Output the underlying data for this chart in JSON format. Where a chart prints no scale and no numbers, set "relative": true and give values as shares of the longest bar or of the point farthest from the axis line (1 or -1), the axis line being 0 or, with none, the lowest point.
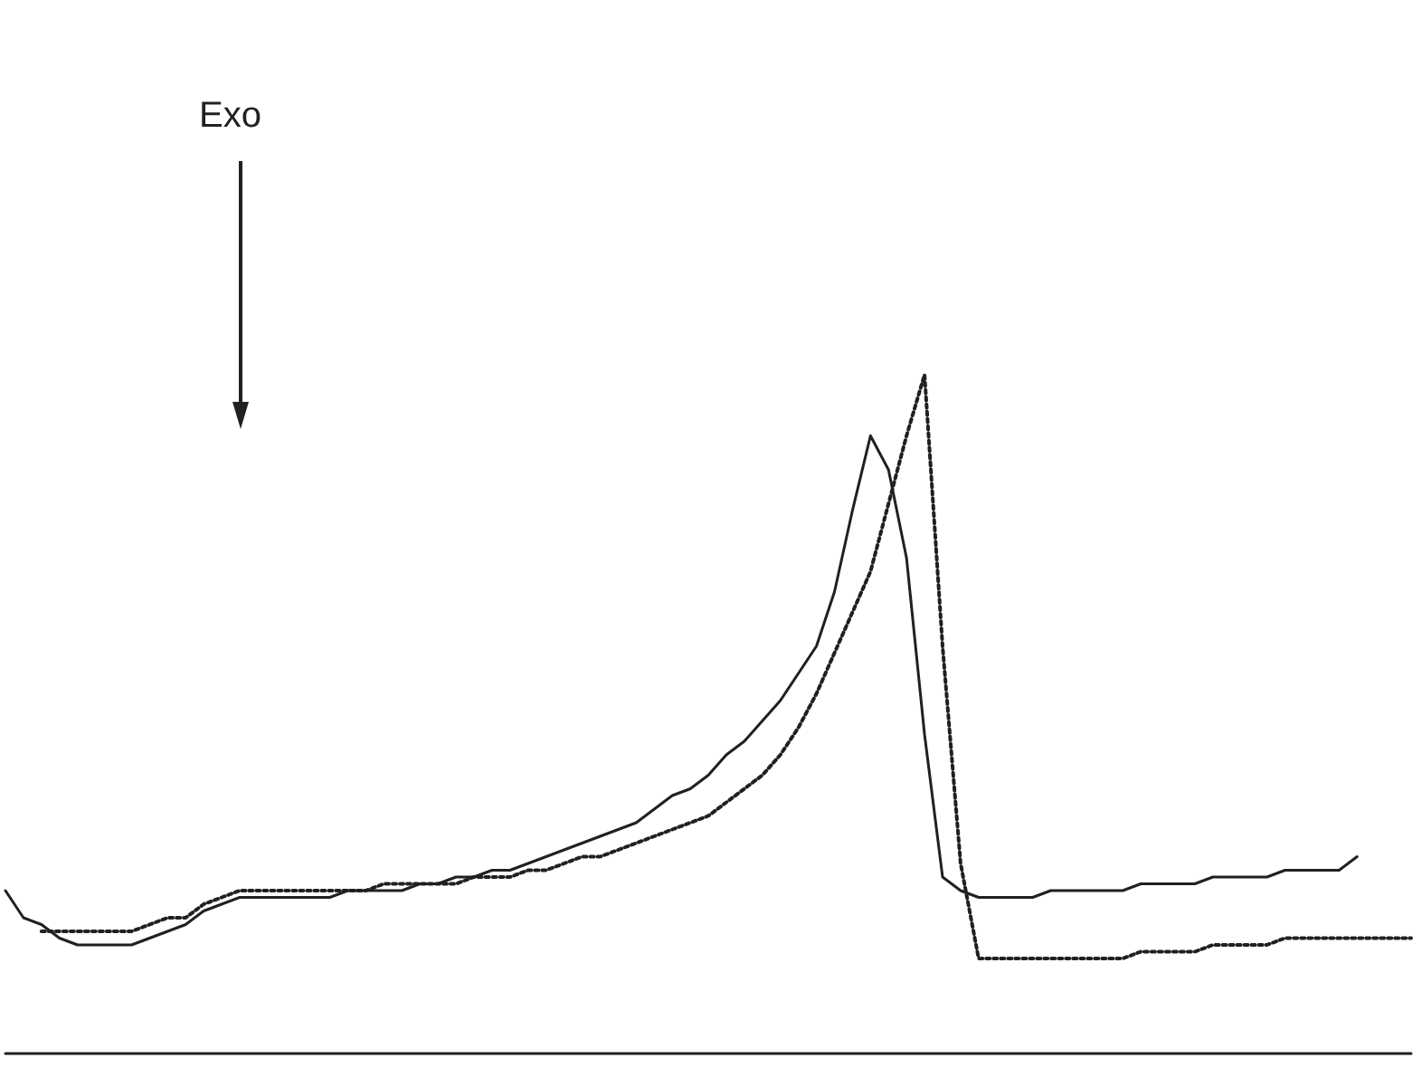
{
  "chart_data": {
    "type": "line",
    "relative": true,
    "grid": false,
    "marker": "none",
    "annotations": [
      "Exo"
    ],
    "categories": [
      null,
      null,
      null,
      null,
      null,
      null,
      null,
      null,
      null,
      null,
      null,
      null,
      null,
      null,
      null,
      null,
      null,
      null,
      null,
      null,
      null,
      null,
      null,
      null,
      null,
      null,
      null,
      null,
      null,
      null,
      null,
      null,
      null,
      null,
      null,
      null,
      null,
      null,
      null,
      null,
      null,
      null,
      null,
      null,
      null,
      null,
      null,
      null,
      null,
      null,
      null,
      null,
      null,
      null,
      null,
      null,
      null,
      null,
      null,
      null,
      null,
      null,
      null,
      null,
      null,
      null,
      null,
      null,
      null,
      null,
      null,
      null,
      null,
      null,
      null,
      null,
      null,
      null,
      null
    ],
    "series": [
      {
        "color": "#231f20",
        "line_style": "solid",
        "values": [
          0.24,
          0.2,
          0.19,
          0.17,
          0.16,
          0.16,
          0.16,
          0.16,
          0.17,
          0.18,
          0.19,
          0.21,
          0.22,
          0.23,
          0.23,
          0.23,
          0.23,
          0.23,
          0.23,
          0.24,
          0.24,
          0.24,
          0.24,
          0.25,
          0.25,
          0.26,
          0.26,
          0.27,
          0.27,
          0.28,
          0.29,
          0.3,
          0.31,
          0.32,
          0.33,
          0.34,
          0.36,
          0.38,
          0.39,
          0.41,
          0.44,
          0.46,
          0.49,
          0.52,
          0.56,
          0.6,
          0.68,
          0.8,
          0.91,
          0.86,
          0.73,
          0.47,
          0.26,
          0.24,
          0.23,
          0.23,
          0.23,
          0.23,
          0.24,
          0.24,
          0.24,
          0.24,
          0.24,
          0.25,
          0.25,
          0.25,
          0.25,
          0.26,
          0.26,
          0.26,
          0.26,
          0.27,
          0.27,
          0.27,
          0.27,
          0.29,
          null,
          null,
          null
        ]
      },
      {
        "color": "#231f20",
        "line_style": "dotted",
        "values": [
          null,
          null,
          0.18,
          0.18,
          0.18,
          0.18,
          0.18,
          0.18,
          0.19,
          0.2,
          0.2,
          0.22,
          0.23,
          0.24,
          0.24,
          0.24,
          0.24,
          0.24,
          0.24,
          0.24,
          0.24,
          0.25,
          0.25,
          0.25,
          0.25,
          0.25,
          0.26,
          0.26,
          0.26,
          0.27,
          0.27,
          0.28,
          0.29,
          0.29,
          0.3,
          0.31,
          0.32,
          0.33,
          0.34,
          0.35,
          0.37,
          0.39,
          0.41,
          0.44,
          0.48,
          0.53,
          0.59,
          0.65,
          0.71,
          0.81,
          0.91,
          1,
          0.6,
          0.28,
          0.14,
          0.14,
          0.14,
          0.14,
          0.14,
          0.14,
          0.14,
          0.14,
          0.14,
          0.15,
          0.15,
          0.15,
          0.15,
          0.16,
          0.16,
          0.16,
          0.16,
          0.17,
          0.17,
          0.17,
          0.17,
          0.17,
          0.17,
          0.17,
          0.17
        ]
      }
    ]
  }
}
